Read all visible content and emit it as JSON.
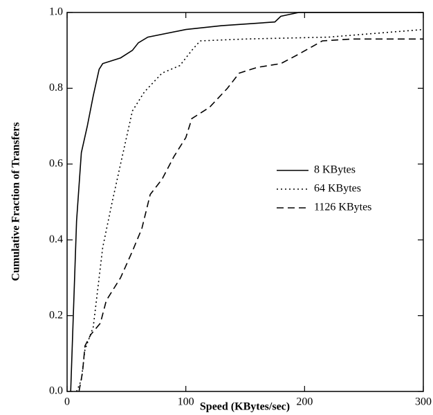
{
  "chart_data": {
    "type": "line",
    "xlabel": "Speed (KBytes/sec)",
    "ylabel": "Cumulative Fraction of Transfers",
    "xlim": [
      0,
      300
    ],
    "xticks": [
      0,
      100,
      200,
      300
    ],
    "ylim": [
      0,
      1
    ],
    "yticks": [
      {
        "value": 0,
        "label": "0.0"
      },
      0.2,
      0.4,
      0.6,
      0.8,
      {
        "value": 1,
        "label": "1.0"
      }
    ],
    "legend": "right",
    "series": [
      {
        "name": "8 KBytes",
        "color": "#000000",
        "dash": "solid",
        "x": [
          3,
          8,
          12,
          17,
          22,
          27,
          30,
          45,
          55,
          60,
          68,
          100,
          130,
          175,
          180,
          195,
          300
        ],
        "values": [
          0,
          0.45,
          0.63,
          0.7,
          0.78,
          0.85,
          0.865,
          0.88,
          0.9,
          0.92,
          0.935,
          0.955,
          0.965,
          0.975,
          0.99,
          1,
          1
        ]
      },
      {
        "name": "64 KBytes",
        "color": "#000000",
        "dash": "dotted",
        "x": [
          8,
          12,
          15,
          22,
          27,
          30,
          38,
          45,
          55,
          65,
          80,
          95,
          105,
          112,
          150,
          220,
          300
        ],
        "values": [
          0,
          0.03,
          0.11,
          0.17,
          0.3,
          0.38,
          0.5,
          0.6,
          0.74,
          0.79,
          0.84,
          0.86,
          0.9,
          0.925,
          0.93,
          0.935,
          0.955
        ]
      },
      {
        "name": "1126 KBytes",
        "color": "#000000",
        "dash": "dashed",
        "x": [
          10,
          13,
          15,
          20,
          28,
          33,
          45,
          55,
          63,
          70,
          80,
          90,
          100,
          105,
          120,
          135,
          145,
          160,
          180,
          195,
          215,
          240,
          300
        ],
        "values": [
          0,
          0.05,
          0.12,
          0.15,
          0.18,
          0.24,
          0.3,
          0.37,
          0.43,
          0.52,
          0.56,
          0.62,
          0.67,
          0.72,
          0.75,
          0.8,
          0.84,
          0.855,
          0.865,
          0.89,
          0.925,
          0.93,
          0.93
        ]
      }
    ]
  }
}
